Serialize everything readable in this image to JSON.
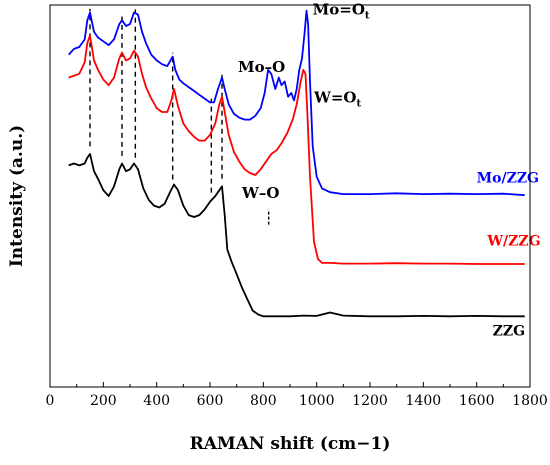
{
  "chart_data": {
    "type": "line",
    "title": "",
    "xlabel": "RAMAN shift (cm−1)",
    "ylabel": "Intensity (a.u.)",
    "xlim": [
      0,
      1800
    ],
    "ylim": [
      0,
      100
    ],
    "xticks": [
      0,
      200,
      400,
      600,
      800,
      1000,
      1200,
      1400,
      1600,
      1800
    ],
    "yticks_shown": false,
    "grid": false,
    "legend": "none",
    "series": [
      {
        "name": "Mo/ZZG",
        "color": "#0000ff",
        "points": [
          [
            70,
            87
          ],
          [
            90,
            88.5
          ],
          [
            110,
            89
          ],
          [
            130,
            91
          ],
          [
            140,
            96
          ],
          [
            150,
            98
          ],
          [
            165,
            93
          ],
          [
            180,
            91.5
          ],
          [
            200,
            90.5
          ],
          [
            220,
            89.5
          ],
          [
            240,
            91
          ],
          [
            260,
            95
          ],
          [
            270,
            96
          ],
          [
            285,
            94.5
          ],
          [
            300,
            95
          ],
          [
            315,
            98
          ],
          [
            330,
            97.5
          ],
          [
            345,
            93
          ],
          [
            360,
            90
          ],
          [
            380,
            87
          ],
          [
            400,
            85.5
          ],
          [
            420,
            84.5
          ],
          [
            440,
            84
          ],
          [
            460,
            86.5
          ],
          [
            470,
            83
          ],
          [
            485,
            80.5
          ],
          [
            500,
            79.5
          ],
          [
            520,
            78.5
          ],
          [
            540,
            77.5
          ],
          [
            560,
            76.5
          ],
          [
            580,
            75.5
          ],
          [
            600,
            74.5
          ],
          [
            615,
            74.5
          ],
          [
            630,
            78
          ],
          [
            645,
            81
          ],
          [
            655,
            78
          ],
          [
            670,
            74
          ],
          [
            690,
            71.5
          ],
          [
            710,
            70.5
          ],
          [
            730,
            70
          ],
          [
            750,
            70
          ],
          [
            770,
            71
          ],
          [
            790,
            73
          ],
          [
            805,
            77
          ],
          [
            818,
            83
          ],
          [
            830,
            82
          ],
          [
            845,
            78
          ],
          [
            858,
            81
          ],
          [
            868,
            79
          ],
          [
            880,
            80
          ],
          [
            893,
            76
          ],
          [
            905,
            77
          ],
          [
            915,
            75
          ],
          [
            925,
            78
          ],
          [
            935,
            83
          ],
          [
            945,
            86
          ],
          [
            955,
            93
          ],
          [
            962,
            98.5
          ],
          [
            968,
            95
          ],
          [
            975,
            80
          ],
          [
            985,
            63
          ],
          [
            1000,
            55
          ],
          [
            1020,
            52
          ],
          [
            1050,
            51
          ],
          [
            1100,
            50.5
          ],
          [
            1200,
            50.5
          ],
          [
            1300,
            50.7
          ],
          [
            1400,
            50.5
          ],
          [
            1500,
            50.6
          ],
          [
            1600,
            50.5
          ],
          [
            1700,
            50.6
          ],
          [
            1780,
            50.2
          ]
        ]
      },
      {
        "name": "W/ZZG",
        "color": "#ff0000",
        "points": [
          [
            70,
            81
          ],
          [
            90,
            81.5
          ],
          [
            110,
            82
          ],
          [
            130,
            85
          ],
          [
            140,
            90
          ],
          [
            150,
            92
          ],
          [
            165,
            85.5
          ],
          [
            180,
            83
          ],
          [
            200,
            80.5
          ],
          [
            220,
            79
          ],
          [
            240,
            81
          ],
          [
            260,
            86
          ],
          [
            270,
            87.5
          ],
          [
            285,
            85.5
          ],
          [
            300,
            86
          ],
          [
            315,
            88
          ],
          [
            330,
            86.5
          ],
          [
            345,
            82
          ],
          [
            360,
            78.5
          ],
          [
            380,
            75.5
          ],
          [
            400,
            73
          ],
          [
            420,
            72
          ],
          [
            440,
            72
          ],
          [
            455,
            75
          ],
          [
            465,
            78
          ],
          [
            480,
            73.5
          ],
          [
            500,
            69
          ],
          [
            520,
            67
          ],
          [
            540,
            65.5
          ],
          [
            560,
            64.5
          ],
          [
            580,
            64.5
          ],
          [
            600,
            66
          ],
          [
            620,
            69
          ],
          [
            635,
            74
          ],
          [
            645,
            76
          ],
          [
            655,
            72
          ],
          [
            670,
            66
          ],
          [
            690,
            61.5
          ],
          [
            710,
            59
          ],
          [
            730,
            57
          ],
          [
            750,
            56
          ],
          [
            770,
            55.5
          ],
          [
            790,
            57
          ],
          [
            810,
            59
          ],
          [
            830,
            61
          ],
          [
            850,
            62
          ],
          [
            870,
            64
          ],
          [
            890,
            66.5
          ],
          [
            910,
            70
          ],
          [
            925,
            74
          ],
          [
            940,
            80
          ],
          [
            950,
            83
          ],
          [
            958,
            82
          ],
          [
            965,
            72
          ],
          [
            975,
            55
          ],
          [
            990,
            38
          ],
          [
            1005,
            33.5
          ],
          [
            1020,
            32.5
          ],
          [
            1050,
            32.5
          ],
          [
            1100,
            32.3
          ],
          [
            1200,
            32.3
          ],
          [
            1300,
            32.4
          ],
          [
            1400,
            32.3
          ],
          [
            1500,
            32.3
          ],
          [
            1600,
            32.2
          ],
          [
            1700,
            32.2
          ],
          [
            1780,
            32.2
          ]
        ]
      },
      {
        "name": "ZZG",
        "color": "#000000",
        "points": [
          [
            70,
            58
          ],
          [
            90,
            58.5
          ],
          [
            110,
            58
          ],
          [
            130,
            58.5
          ],
          [
            140,
            60
          ],
          [
            150,
            61
          ],
          [
            165,
            56.5
          ],
          [
            180,
            54.5
          ],
          [
            200,
            51.5
          ],
          [
            220,
            50
          ],
          [
            240,
            52.5
          ],
          [
            260,
            57
          ],
          [
            270,
            58.5
          ],
          [
            285,
            56.5
          ],
          [
            300,
            57
          ],
          [
            315,
            58.5
          ],
          [
            330,
            57
          ],
          [
            350,
            52
          ],
          [
            370,
            49
          ],
          [
            390,
            47.5
          ],
          [
            410,
            47
          ],
          [
            430,
            48
          ],
          [
            450,
            51
          ],
          [
            465,
            53
          ],
          [
            480,
            51.5
          ],
          [
            500,
            47.5
          ],
          [
            520,
            45
          ],
          [
            540,
            44.5
          ],
          [
            560,
            45
          ],
          [
            580,
            46.5
          ],
          [
            600,
            48.5
          ],
          [
            620,
            50
          ],
          [
            635,
            51.5
          ],
          [
            645,
            52.5
          ],
          [
            655,
            45
          ],
          [
            665,
            36
          ],
          [
            680,
            33
          ],
          [
            700,
            29.5
          ],
          [
            720,
            26
          ],
          [
            740,
            23
          ],
          [
            760,
            20
          ],
          [
            780,
            19
          ],
          [
            800,
            18.5
          ],
          [
            850,
            18.5
          ],
          [
            900,
            18.5
          ],
          [
            950,
            18.7
          ],
          [
            1000,
            18.6
          ],
          [
            1050,
            19.5
          ],
          [
            1080,
            19
          ],
          [
            1100,
            18.7
          ],
          [
            1200,
            18.5
          ],
          [
            1300,
            18.5
          ],
          [
            1400,
            18.6
          ],
          [
            1500,
            18.5
          ],
          [
            1600,
            18.6
          ],
          [
            1700,
            18.5
          ],
          [
            1780,
            18.5
          ]
        ]
      }
    ],
    "reference_lines_x": [
      150,
      270,
      320,
      460,
      605,
      645
    ],
    "annotations": [
      {
        "main": "Mo=O",
        "sub": "t",
        "x": 985,
        "y": 97.5
      },
      {
        "main": "Mo–O",
        "sub": "",
        "x": 705,
        "y": 82.5
      },
      {
        "main": "W=O",
        "sub": "t",
        "x": 990,
        "y": 74.5
      },
      {
        "main": "W–O",
        "sub": "",
        "x": 720,
        "y": 49.5
      }
    ],
    "annotation_marker": {
      "x": 820,
      "y_from": 42.5,
      "y_to": 46.5
    },
    "series_labels": [
      {
        "text": "Mo/ZZG",
        "x": 1600,
        "y": 53.5,
        "color": "#0000ff"
      },
      {
        "text": "W/ZZG",
        "x": 1640,
        "y": 37,
        "color": "#ff0000"
      },
      {
        "text": "ZZG",
        "x": 1660,
        "y": 13.5,
        "color": "#000000"
      }
    ]
  }
}
